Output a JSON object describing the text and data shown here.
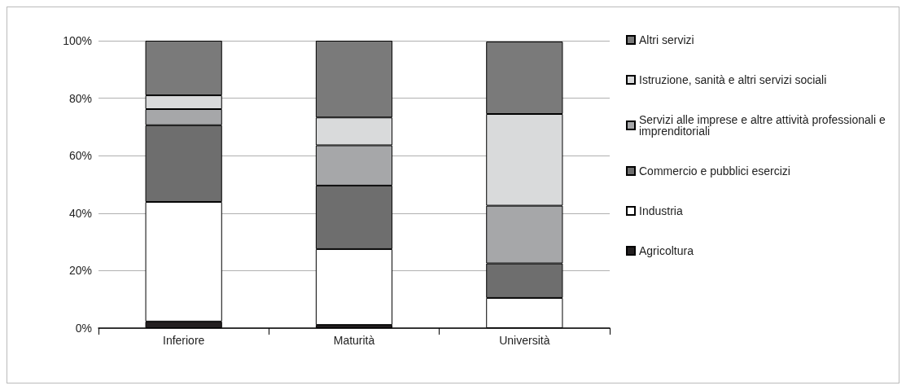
{
  "chart_data": {
    "type": "bar",
    "stacked": true,
    "categories": [
      "Inferiore",
      "Maturità",
      "Università"
    ],
    "series": [
      {
        "name": "Agricoltura",
        "color": "#231f20",
        "values": [
          2.3,
          1.1,
          null
        ]
      },
      {
        "name": "Industria",
        "color": "#ffffff",
        "values": [
          41.6,
          26.4,
          10.5
        ]
      },
      {
        "name": "Commercio e pubblici esercizi",
        "color": "#6e6e6e",
        "values": [
          26.7,
          22.1,
          12.0
        ]
      },
      {
        "name": "Servizi alle imprese e altre attività professionali e imprenditoriali",
        "color": "#a6a7a9",
        "values": [
          5.6,
          14.0,
          20.1
        ]
      },
      {
        "name": "Istruzione, sanità e altri servizi sociali",
        "color": "#d9dadb",
        "values": [
          4.8,
          9.7,
          31.9
        ]
      },
      {
        "name": "Altri servizi",
        "color": "#7a7a7a",
        "values": [
          19.0,
          26.7,
          25.2
        ]
      }
    ],
    "ylim": [
      0,
      100
    ],
    "yticks": [
      {
        "value": 0,
        "label": "0%"
      },
      {
        "value": 20,
        "label": "20%"
      },
      {
        "value": 40,
        "label": "40%"
      },
      {
        "value": 60,
        "label": "60%"
      },
      {
        "value": 80,
        "label": "80%"
      },
      {
        "value": 100,
        "label": "100%"
      }
    ],
    "grid": "y",
    "legend": "right"
  }
}
